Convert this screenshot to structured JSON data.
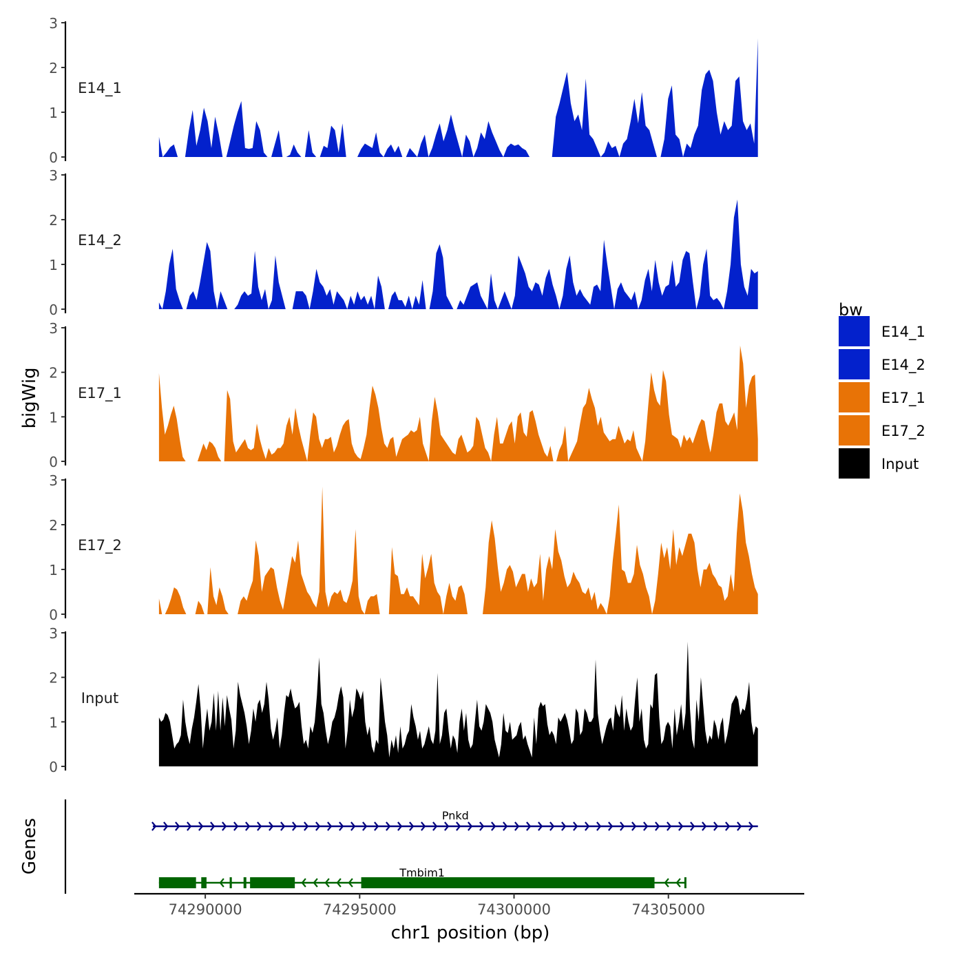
{
  "chart_data": {
    "type": "area",
    "title": "",
    "xlabel": "chr1 position (bp)",
    "ylabel": "bigWig",
    "genes_label": "Genes",
    "xlim": [
      74287700,
      74309400
    ],
    "x_start": 74288500,
    "x_end": 74307900,
    "ylim": [
      0,
      3
    ],
    "y_ticks": [
      "0",
      "1",
      "2",
      "3"
    ],
    "x_ticks": [
      {
        "value": 74290000,
        "label": "74290000"
      },
      {
        "value": 74295000,
        "label": "74295000"
      },
      {
        "value": 74300000,
        "label": "74300000"
      },
      {
        "value": 74305000,
        "label": "74305000"
      }
    ],
    "legend": {
      "title": "bw",
      "position": "right",
      "entries": [
        {
          "label": "E14_1",
          "color": "#0321CC"
        },
        {
          "label": "E14_2",
          "color": "#0321CC"
        },
        {
          "label": "E17_1",
          "color": "#E87306"
        },
        {
          "label": "E17_2",
          "color": "#E87306"
        },
        {
          "label": "Input",
          "color": "#000000"
        }
      ]
    },
    "series": [
      {
        "name": "E14_1",
        "color": "#0321CC",
        "values": [
          0.45,
          0,
          0.1,
          0.22,
          0.28,
          0,
          0,
          0,
          0.6,
          1.05,
          0.25,
          0.6,
          1.1,
          0.8,
          0.2,
          0.9,
          0.5,
          0,
          0,
          0.35,
          0.7,
          1.0,
          1.25,
          0.2,
          0.18,
          0.2,
          0.8,
          0.6,
          0.1,
          0,
          0,
          0.3,
          0.6,
          0,
          0,
          0.05,
          0.28,
          0.1,
          0,
          0,
          0.6,
          0.1,
          0,
          0,
          0.25,
          0.2,
          0.7,
          0.6,
          0.1,
          0.75,
          0,
          0,
          0,
          0,
          0.18,
          0.3,
          0.25,
          0.2,
          0.55,
          0.1,
          0,
          0.18,
          0.28,
          0.1,
          0.25,
          0,
          0,
          0.2,
          0.1,
          0,
          0.3,
          0.5,
          0,
          0.2,
          0.5,
          0.75,
          0.35,
          0.6,
          0.95,
          0.6,
          0.3,
          0,
          0.5,
          0.35,
          0,
          0.2,
          0.55,
          0.4,
          0.8,
          0.55,
          0.35,
          0.15,
          0,
          0.22,
          0.3,
          0.25,
          0.28,
          0.2,
          0.15,
          0,
          0,
          0,
          0,
          0,
          0,
          0,
          0.9,
          1.2,
          1.55,
          1.9,
          1.2,
          0.8,
          0.95,
          0.6,
          1.75,
          0.5,
          0.4,
          0.2,
          0,
          0.1,
          0.35,
          0.2,
          0.25,
          0,
          0.3,
          0.4,
          0.8,
          1.3,
          0.75,
          1.45,
          0.7,
          0.6,
          0.3,
          0,
          0,
          0.4,
          1.3,
          1.6,
          0.5,
          0.4,
          0,
          0.3,
          0.2,
          0.5,
          0.7,
          1.5,
          1.85,
          1.95,
          1.7,
          1.0,
          0.5,
          0.8,
          0.6,
          0.7,
          1.7,
          1.8,
          0.8,
          0.6,
          0.75,
          0.3,
          2.65
        ]
      },
      {
        "name": "E14_2",
        "color": "#0321CC",
        "values": [
          0.15,
          0,
          0.4,
          1.0,
          1.35,
          0.45,
          0.2,
          0,
          0,
          0.3,
          0.4,
          0.2,
          0.6,
          1.05,
          1.5,
          1.3,
          0.4,
          0,
          0.4,
          0.2,
          0,
          0,
          0,
          0.1,
          0.3,
          0.4,
          0.3,
          0.35,
          1.3,
          0.5,
          0.2,
          0.45,
          0,
          0.2,
          1.2,
          0.6,
          0.3,
          0,
          0,
          0,
          0.4,
          0.4,
          0.4,
          0.3,
          0,
          0.4,
          0.9,
          0.6,
          0.5,
          0.3,
          0.45,
          0.1,
          0.4,
          0.3,
          0.2,
          0,
          0.3,
          0.1,
          0.4,
          0.2,
          0.3,
          0.1,
          0.3,
          0,
          0.75,
          0.5,
          0,
          0,
          0.3,
          0.4,
          0.2,
          0.2,
          0.05,
          0.3,
          0,
          0.3,
          0.1,
          0.65,
          0,
          0,
          0.4,
          1.25,
          1.45,
          1.15,
          0.3,
          0.15,
          0,
          0,
          0.2,
          0.1,
          0.3,
          0.5,
          0.55,
          0.6,
          0.3,
          0.15,
          0,
          0.8,
          0.2,
          0,
          0.2,
          0.4,
          0.2,
          0,
          0.3,
          1.2,
          1.0,
          0.8,
          0.5,
          0.4,
          0.6,
          0.55,
          0.3,
          0.7,
          0.9,
          0.55,
          0.3,
          0,
          0.3,
          0.9,
          1.2,
          0.6,
          0.3,
          0.45,
          0.3,
          0.2,
          0.1,
          0.5,
          0.55,
          0.4,
          1.55,
          1.0,
          0.5,
          0,
          0.45,
          0.6,
          0.4,
          0.3,
          0.2,
          0.4,
          0,
          0.2,
          0.65,
          0.9,
          0.4,
          1.1,
          0.6,
          0.3,
          0.5,
          0.55,
          1.1,
          0.5,
          0.6,
          1.1,
          1.3,
          1.25,
          0.6,
          0,
          0.3,
          1.0,
          1.35,
          0.3,
          0.2,
          0.25,
          0.15,
          0,
          0.4,
          1.0,
          2.05,
          2.45,
          1.0,
          0.5,
          0.3,
          0.9,
          0.8,
          0.85
        ]
      },
      {
        "name": "E17_1",
        "color": "#E87306",
        "values": [
          1.98,
          1.2,
          0.6,
          0.8,
          1.05,
          1.25,
          0.95,
          0.5,
          0.1,
          0,
          0,
          0,
          0,
          0,
          0.2,
          0.4,
          0.25,
          0.45,
          0.4,
          0.3,
          0.1,
          0,
          0,
          1.6,
          1.4,
          0.45,
          0.2,
          0.3,
          0.4,
          0.5,
          0.3,
          0.25,
          0.3,
          0.85,
          0.5,
          0.25,
          0.05,
          0.3,
          0.15,
          0.2,
          0.3,
          0.3,
          0.4,
          0.8,
          1.0,
          0.6,
          1.2,
          0.8,
          0.5,
          0.25,
          0,
          0.6,
          1.1,
          1.0,
          0.5,
          0.3,
          0.5,
          0.5,
          0.55,
          0.2,
          0.35,
          0.6,
          0.8,
          0.9,
          0.95,
          0.4,
          0.2,
          0.1,
          0.05,
          0.3,
          0.6,
          1.2,
          1.7,
          1.5,
          1.2,
          0.75,
          0.4,
          0.3,
          0.5,
          0.55,
          0.1,
          0.3,
          0.5,
          0.55,
          0.6,
          0.7,
          0.65,
          0.7,
          1.0,
          0.4,
          0.2,
          0,
          0.9,
          1.45,
          1.1,
          0.6,
          0.5,
          0.4,
          0.3,
          0.2,
          0.15,
          0.5,
          0.6,
          0.4,
          0.2,
          0.25,
          0.35,
          1.0,
          0.9,
          0.6,
          0.3,
          0.2,
          0,
          0.6,
          1.0,
          0.4,
          0.4,
          0.6,
          0.8,
          0.9,
          0.4,
          1.0,
          1.1,
          0.65,
          0.55,
          1.1,
          1.15,
          0.9,
          0.6,
          0.4,
          0.2,
          0.1,
          0.35,
          0,
          0,
          0.25,
          0.4,
          0.8,
          0,
          0.15,
          0.3,
          0.45,
          0.85,
          1.2,
          1.3,
          1.65,
          1.4,
          1.2,
          0.8,
          1.0,
          0.65,
          0.55,
          0.45,
          0.5,
          0.5,
          0.8,
          0.6,
          0.4,
          0.5,
          0.45,
          0.7,
          0.3,
          0.15,
          0,
          0.45,
          1.25,
          2.0,
          1.6,
          1.35,
          1.25,
          2.05,
          1.8,
          1.05,
          0.6,
          0.55,
          0.5,
          0.3,
          0.6,
          0.45,
          0.55,
          0.4,
          0.6,
          0.8,
          0.95,
          0.9,
          0.5,
          0.2,
          0.6,
          1.1,
          1.3,
          1.3,
          0.9,
          0.8,
          0.95,
          1.1,
          0.7,
          2.6,
          2.2,
          1.2,
          1.7,
          1.9,
          1.95,
          0.5
        ]
      },
      {
        "name": "E17_2",
        "color": "#E87306",
        "values": [
          0.35,
          0,
          0,
          0.15,
          0.35,
          0.6,
          0.55,
          0.4,
          0.15,
          0,
          0,
          0,
          0,
          0.3,
          0.2,
          0,
          0,
          1.05,
          0.4,
          0.2,
          0.6,
          0.4,
          0.1,
          0,
          0,
          0,
          0,
          0.3,
          0.4,
          0.3,
          0.55,
          0.75,
          1.65,
          1.3,
          0.5,
          0.85,
          0.95,
          1.05,
          1.0,
          0.6,
          0.3,
          0.1,
          0.5,
          0.9,
          1.3,
          1.15,
          1.65,
          0.9,
          0.7,
          0.5,
          0.4,
          0.25,
          0.15,
          0.5,
          2.85,
          0.5,
          0.15,
          0.4,
          0.5,
          0.45,
          0.55,
          0.3,
          0.25,
          0.45,
          0.75,
          1.9,
          0.4,
          0.1,
          0,
          0.3,
          0.4,
          0.4,
          0.45,
          0,
          0,
          0,
          0,
          1.5,
          0.9,
          0.85,
          0.45,
          0.45,
          0.6,
          0.4,
          0.4,
          0.3,
          0.2,
          1.35,
          0.8,
          1.05,
          1.35,
          0.7,
          0.5,
          0.4,
          0,
          0.4,
          0.7,
          0.4,
          0.3,
          0.6,
          0.65,
          0.45,
          0,
          0,
          0,
          0,
          0,
          0,
          0.6,
          1.6,
          2.1,
          1.7,
          1.05,
          0.5,
          0.7,
          1.0,
          1.1,
          0.95,
          0.6,
          0.75,
          0.9,
          0.9,
          0.5,
          0.8,
          0.6,
          0.7,
          1.35,
          0.3,
          1.0,
          1.3,
          1.0,
          1.9,
          1.4,
          1.2,
          0.85,
          0.6,
          0.7,
          0.95,
          0.8,
          0.7,
          0.5,
          0.45,
          0.6,
          0.3,
          0.5,
          0.1,
          0.25,
          0.15,
          0,
          0.4,
          1.2,
          1.8,
          2.45,
          1.0,
          0.95,
          0.7,
          0.7,
          0.9,
          1.55,
          1.1,
          0.9,
          0.6,
          0.4,
          0,
          0.3,
          0.9,
          1.6,
          1.25,
          1.5,
          1.0,
          1.9,
          1.1,
          1.5,
          1.3,
          1.55,
          1.8,
          1.8,
          1.6,
          1.0,
          0.6,
          1.0,
          1.0,
          1.15,
          0.9,
          0.8,
          0.65,
          0.6,
          0.3,
          0.4,
          0.9,
          0.5,
          1.8,
          2.7,
          2.3,
          1.6,
          1.3,
          0.9,
          0.6,
          0.45
        ]
      },
      {
        "name": "Input",
        "color": "#000000",
        "values": [
          1.1,
          1.0,
          1.05,
          1.2,
          1.15,
          1.0,
          0.7,
          0.4,
          0.5,
          0.55,
          0.7,
          1.5,
          1.0,
          0.7,
          0.5,
          0.85,
          1.1,
          1.45,
          1.85,
          1.3,
          0.4,
          0.9,
          1.3,
          0.8,
          1.0,
          1.65,
          0.8,
          1.7,
          0.8,
          1.55,
          0.9,
          1.6,
          1.3,
          1.05,
          0.4,
          0.8,
          1.9,
          1.6,
          1.4,
          1.2,
          0.9,
          0.5,
          0.8,
          1.3,
          1.0,
          1.4,
          1.5,
          1.2,
          1.4,
          1.9,
          1.5,
          0.85,
          0.6,
          0.8,
          1.1,
          0.4,
          0.7,
          1.2,
          1.6,
          1.55,
          1.75,
          1.5,
          1.3,
          1.35,
          1.45,
          0.9,
          0.5,
          0.6,
          0.4,
          0.9,
          0.75,
          1.0,
          1.6,
          2.45,
          1.4,
          1.2,
          0.8,
          0.5,
          0.7,
          1.0,
          1.1,
          1.3,
          1.6,
          1.8,
          1.55,
          0.4,
          0.8,
          1.5,
          1.1,
          1.3,
          1.75,
          1.65,
          1.5,
          1.7,
          1.0,
          0.7,
          0.9,
          0.45,
          0.3,
          0.6,
          0.5,
          2.0,
          1.5,
          1.0,
          0.7,
          0.2,
          0.6,
          0.4,
          0.7,
          0.3,
          0.9,
          0.4,
          0.5,
          0.7,
          0.8,
          1.4,
          1.1,
          0.9,
          0.6,
          0.8,
          0.4,
          0.5,
          0.7,
          0.9,
          0.6,
          0.5,
          0.8,
          2.1,
          0.5,
          0.7,
          1.2,
          1.3,
          0.8,
          0.4,
          0.7,
          0.6,
          0.3,
          1.0,
          1.3,
          0.8,
          1.2,
          0.6,
          0.4,
          0.5,
          1.0,
          1.5,
          0.9,
          0.8,
          1.0,
          1.4,
          1.3,
          1.2,
          1.0,
          0.6,
          0.4,
          0.2,
          0.5,
          1.2,
          0.8,
          0.75,
          1.0,
          0.6,
          0.65,
          0.7,
          0.9,
          1.0,
          0.6,
          0.7,
          0.5,
          0.35,
          0.2,
          1.1,
          0.5,
          1.3,
          1.45,
          1.35,
          1.4,
          0.95,
          0.7,
          0.8,
          0.7,
          0.5,
          1.1,
          1.0,
          1.1,
          1.2,
          1.05,
          0.8,
          0.5,
          0.6,
          1.3,
          1.2,
          0.7,
          0.8,
          1.3,
          1.2,
          1.0,
          1.0,
          1.1,
          2.4,
          1.2,
          0.8,
          0.5,
          0.7,
          0.9,
          1.05,
          1.1,
          0.8,
          1.4,
          1.2,
          1.1,
          1.6,
          0.8,
          1.3,
          1.0,
          0.8,
          0.9,
          1.5,
          2.0,
          1.0,
          1.3,
          0.6,
          0.4,
          0.5,
          1.4,
          1.3,
          2.05,
          2.1,
          1.1,
          0.5,
          0.6,
          0.9,
          1.0,
          0.9,
          0.4,
          1.3,
          0.7,
          1.0,
          1.4,
          0.8,
          1.2,
          2.8,
          1.3,
          0.6,
          0.4,
          1.5,
          1.0,
          2.0,
          1.4,
          0.8,
          0.5,
          0.7,
          0.6,
          1.05,
          0.9,
          0.6,
          0.95,
          1.1,
          0.5,
          0.7,
          1.0,
          1.4,
          1.5,
          1.6,
          1.5,
          1.15,
          1.3,
          1.25,
          1.5,
          1.9,
          1.0,
          0.7,
          0.9,
          0.85
        ]
      }
    ],
    "genes": [
      {
        "name": "Pnkd",
        "strand": "+",
        "color": "#000080",
        "start": 74288300,
        "end": 74307900,
        "exons": []
      },
      {
        "name": "Tmbim1",
        "strand": "-",
        "color": "#006400",
        "start": 74288500,
        "end": 74305550,
        "exons": [
          [
            74288500,
            74289700
          ],
          [
            74289870,
            74290040
          ],
          [
            74290790,
            74290860
          ],
          [
            74291240,
            74291330
          ],
          [
            74291450,
            74292900
          ],
          [
            74295050,
            74304550
          ]
        ]
      }
    ]
  }
}
